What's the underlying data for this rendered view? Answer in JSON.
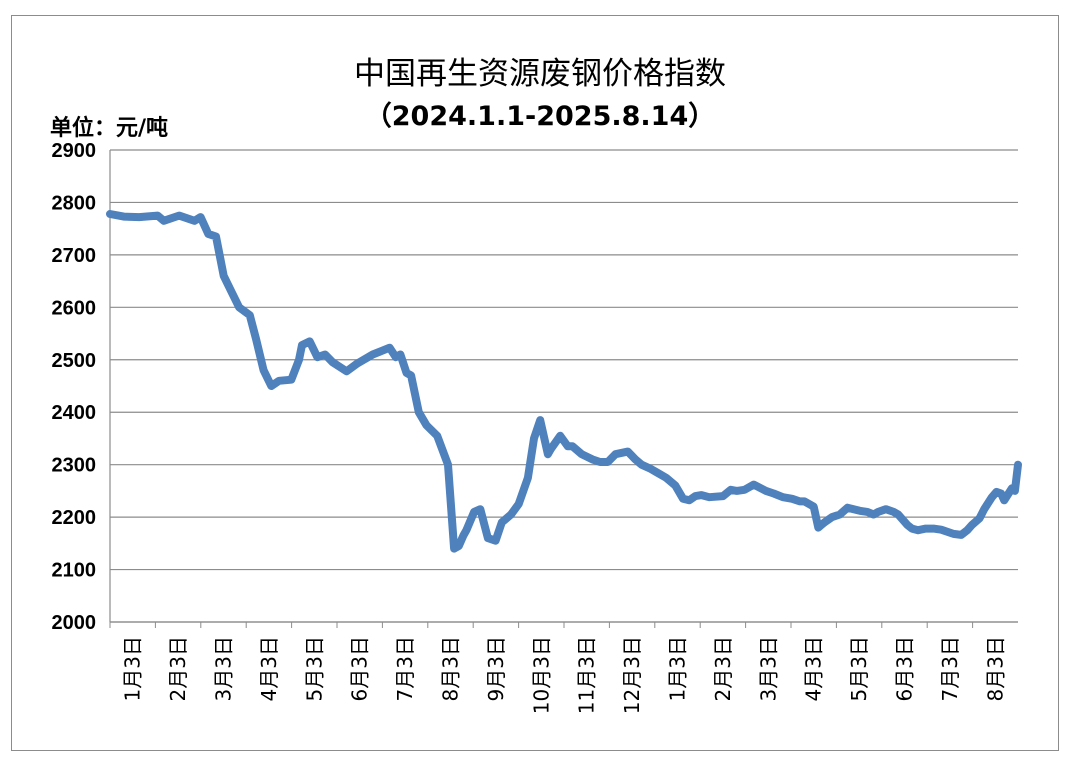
{
  "chart_data": {
    "type": "line",
    "title": "中国再生资源废钢价格指数",
    "subtitle": "（2024.1.1-2025.8.14）",
    "unit_label": "单位：元/吨",
    "ylim": [
      2000,
      2900
    ],
    "yticks": [
      2000,
      2100,
      2200,
      2300,
      2400,
      2500,
      2600,
      2700,
      2800,
      2900
    ],
    "grid": true,
    "line_color": "#4f81bd",
    "x_tick_labels": [
      "1月3日",
      "2月3日",
      "3月3日",
      "4月3日",
      "5月3日",
      "6月3日",
      "7月3日",
      "8月3日",
      "9月3日",
      "10月3日",
      "11月3日",
      "12月3日",
      "1月3日",
      "2月3日",
      "3月3日",
      "4月3日",
      "5月3日",
      "6月3日",
      "7月3日",
      "8月3日"
    ],
    "x": [
      "2024-01-01",
      "2024-01-10",
      "2024-01-20",
      "2024-02-01",
      "2024-02-05",
      "2024-02-15",
      "2024-02-25",
      "2024-02-29",
      "2024-03-05",
      "2024-03-10",
      "2024-03-15",
      "2024-03-20",
      "2024-03-25",
      "2024-04-01",
      "2024-04-05",
      "2024-04-10",
      "2024-04-15",
      "2024-04-20",
      "2024-04-28",
      "2024-05-03",
      "2024-05-05",
      "2024-05-10",
      "2024-05-15",
      "2024-05-20",
      "2024-05-25",
      "2024-06-03",
      "2024-06-10",
      "2024-06-20",
      "2024-07-01",
      "2024-07-05",
      "2024-07-08",
      "2024-07-12",
      "2024-07-15",
      "2024-07-20",
      "2024-07-25",
      "2024-08-01",
      "2024-08-08",
      "2024-08-12",
      "2024-08-15",
      "2024-08-18",
      "2024-08-20",
      "2024-08-25",
      "2024-08-29",
      "2024-09-03",
      "2024-09-08",
      "2024-09-12",
      "2024-09-18",
      "2024-09-23",
      "2024-09-29",
      "2024-10-03",
      "2024-10-07",
      "2024-10-12",
      "2024-10-14",
      "2024-10-20",
      "2024-10-25",
      "2024-10-28",
      "2024-11-03",
      "2024-11-10",
      "2024-11-15",
      "2024-11-20",
      "2024-11-25",
      "2024-12-03",
      "2024-12-08",
      "2024-12-12",
      "2024-12-18",
      "2024-12-22",
      "2024-12-28",
      "2025-01-03",
      "2025-01-08",
      "2025-01-12",
      "2025-01-16",
      "2025-01-20",
      "2025-01-25",
      "2025-02-03",
      "2025-02-08",
      "2025-02-12",
      "2025-02-17",
      "2025-02-23",
      "2025-03-03",
      "2025-03-08",
      "2025-03-14",
      "2025-03-20",
      "2025-03-25",
      "2025-03-28",
      "2025-04-03",
      "2025-04-06",
      "2025-04-08",
      "2025-04-10",
      "2025-04-15",
      "2025-04-20",
      "2025-04-25",
      "2025-05-03",
      "2025-05-08",
      "2025-05-12",
      "2025-05-15",
      "2025-05-20",
      "2025-05-25",
      "2025-05-28",
      "2025-06-03",
      "2025-06-06",
      "2025-06-10",
      "2025-06-15",
      "2025-06-20",
      "2025-06-25",
      "2025-07-03",
      "2025-07-08",
      "2025-07-12",
      "2025-07-15",
      "2025-07-20",
      "2025-07-23",
      "2025-07-28",
      "2025-07-31",
      "2025-08-03",
      "2025-08-05",
      "2025-08-10",
      "2025-08-12",
      "2025-08-14"
    ],
    "values": [
      2778,
      2773,
      2772,
      2775,
      2765,
      2775,
      2765,
      2772,
      2740,
      2735,
      2660,
      2630,
      2600,
      2585,
      2540,
      2480,
      2450,
      2460,
      2462,
      2500,
      2528,
      2535,
      2505,
      2510,
      2495,
      2478,
      2493,
      2510,
      2523,
      2505,
      2510,
      2475,
      2470,
      2400,
      2375,
      2355,
      2300,
      2140,
      2145,
      2165,
      2175,
      2210,
      2215,
      2160,
      2155,
      2190,
      2205,
      2225,
      2275,
      2350,
      2385,
      2320,
      2330,
      2355,
      2335,
      2335,
      2320,
      2310,
      2305,
      2305,
      2320,
      2325,
      2310,
      2300,
      2292,
      2285,
      2275,
      2260,
      2235,
      2232,
      2240,
      2242,
      2238,
      2240,
      2252,
      2250,
      2252,
      2262,
      2250,
      2245,
      2238,
      2235,
      2230,
      2230,
      2220,
      2180,
      2185,
      2190,
      2200,
      2205,
      2218,
      2212,
      2210,
      2205,
      2210,
      2215,
      2210,
      2205,
      2185,
      2178,
      2175,
      2178,
      2178,
      2176,
      2168,
      2166,
      2175,
      2185,
      2198,
      2215,
      2238,
      2248,
      2245,
      2232,
      2255,
      2250,
      2300
    ]
  }
}
